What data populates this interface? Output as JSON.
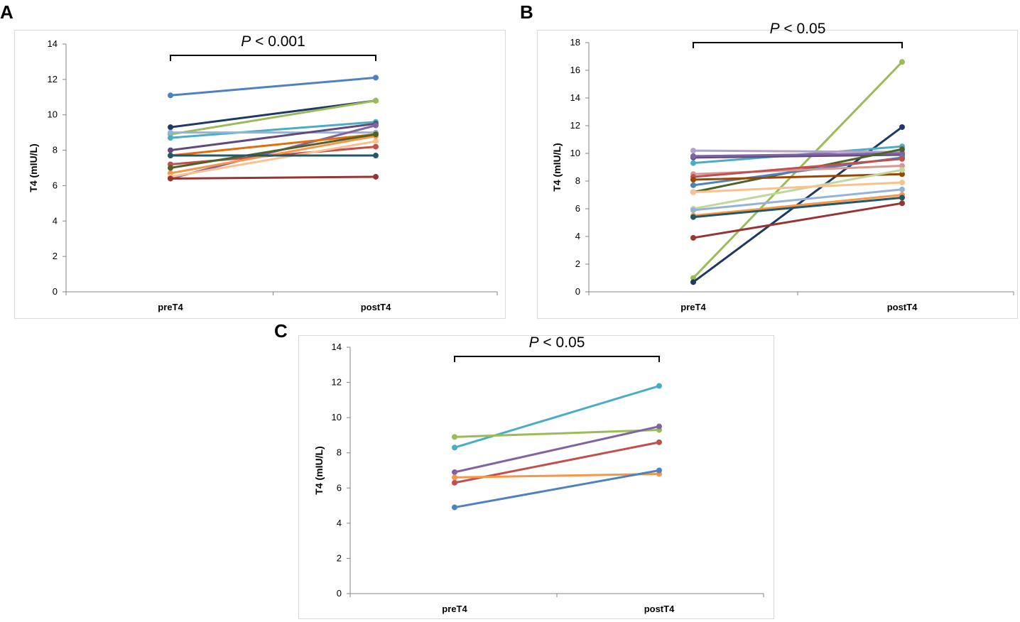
{
  "panels": {
    "a": {
      "letter": "A"
    },
    "b": {
      "letter": "B"
    },
    "c": {
      "letter": "C"
    }
  },
  "chart_data": [
    {
      "panel": "A",
      "type": "line",
      "categories": [
        "preT4",
        "postT4"
      ],
      "ylabel": "T4 (mIU/L)",
      "ylim": [
        0,
        14
      ],
      "yticks": [
        0,
        2,
        4,
        6,
        8,
        10,
        12,
        14
      ],
      "annotation": {
        "italic": "P",
        "rest": " < 0.001"
      },
      "series": [
        {
          "color": "#4f81bd",
          "values": [
            11.1,
            12.1
          ]
        },
        {
          "color": "#1f3864",
          "values": [
            9.3,
            10.8
          ]
        },
        {
          "color": "#9bbb59",
          "values": [
            8.9,
            10.8
          ]
        },
        {
          "color": "#4bacc6",
          "values": [
            8.7,
            9.6
          ]
        },
        {
          "color": "#95b3d7",
          "values": [
            9.0,
            9.0
          ]
        },
        {
          "color": "#604a7b",
          "values": [
            8.0,
            9.5
          ]
        },
        {
          "color": "#8064a2",
          "values": [
            6.4,
            9.4
          ]
        },
        {
          "color": "#c0504d",
          "values": [
            7.2,
            8.2
          ]
        },
        {
          "color": "#e46c0a",
          "values": [
            7.7,
            8.9
          ]
        },
        {
          "color": "#f79646",
          "values": [
            6.7,
            8.8
          ]
        },
        {
          "color": "#fac08f",
          "values": [
            6.5,
            8.5
          ]
        },
        {
          "color": "#4f6228",
          "values": [
            7.0,
            8.9
          ]
        },
        {
          "color": "#215968",
          "values": [
            7.7,
            7.7
          ]
        },
        {
          "color": "#943634",
          "values": [
            6.4,
            6.5
          ]
        }
      ]
    },
    {
      "panel": "B",
      "type": "line",
      "categories": [
        "preT4",
        "postT4"
      ],
      "ylabel": "T4 (mIU/L)",
      "ylim": [
        0,
        18
      ],
      "yticks": [
        0,
        2,
        4,
        6,
        8,
        10,
        12,
        14,
        16,
        18
      ],
      "annotation": {
        "italic": "P",
        "rest": " < 0.05"
      },
      "series": [
        {
          "color": "#9bbb59",
          "values": [
            1.0,
            16.6
          ]
        },
        {
          "color": "#1f3864",
          "values": [
            0.7,
            11.9
          ]
        },
        {
          "color": "#4bacc6",
          "values": [
            9.3,
            10.5
          ]
        },
        {
          "color": "#b2a2c7",
          "values": [
            10.2,
            10.1
          ]
        },
        {
          "color": "#604a7b",
          "values": [
            9.7,
            9.9
          ]
        },
        {
          "color": "#8064a2",
          "values": [
            9.8,
            10.0
          ]
        },
        {
          "color": "#4f6228",
          "values": [
            7.2,
            10.3
          ]
        },
        {
          "color": "#4f81bd",
          "values": [
            7.7,
            9.7
          ]
        },
        {
          "color": "#d99694",
          "values": [
            8.5,
            9.1
          ]
        },
        {
          "color": "#c0504d",
          "values": [
            8.3,
            9.6
          ]
        },
        {
          "color": "#984806",
          "values": [
            8.1,
            8.5
          ]
        },
        {
          "color": "#c3d69b",
          "values": [
            6.0,
            8.8
          ]
        },
        {
          "color": "#fac08f",
          "values": [
            7.2,
            7.9
          ]
        },
        {
          "color": "#95b3d7",
          "values": [
            5.9,
            7.4
          ]
        },
        {
          "color": "#f79646",
          "values": [
            5.5,
            7.0
          ]
        },
        {
          "color": "#215968",
          "values": [
            5.4,
            6.8
          ]
        },
        {
          "color": "#943634",
          "values": [
            3.9,
            6.4
          ]
        }
      ]
    },
    {
      "panel": "C",
      "type": "line",
      "categories": [
        "preT4",
        "postT4"
      ],
      "ylabel": "T4 (mIU/L)",
      "ylim": [
        0,
        14
      ],
      "yticks": [
        0,
        2,
        4,
        6,
        8,
        10,
        12,
        14
      ],
      "annotation": {
        "italic": "P",
        "rest": " < 0.05"
      },
      "series": [
        {
          "color": "#4bacc6",
          "values": [
            8.3,
            11.8
          ]
        },
        {
          "color": "#9bbb59",
          "values": [
            8.9,
            9.3
          ]
        },
        {
          "color": "#8064a2",
          "values": [
            6.9,
            9.5
          ]
        },
        {
          "color": "#c0504d",
          "values": [
            6.3,
            8.6
          ]
        },
        {
          "color": "#f79646",
          "values": [
            6.6,
            6.8
          ]
        },
        {
          "color": "#4f81bd",
          "values": [
            4.9,
            7.0
          ]
        }
      ]
    }
  ]
}
